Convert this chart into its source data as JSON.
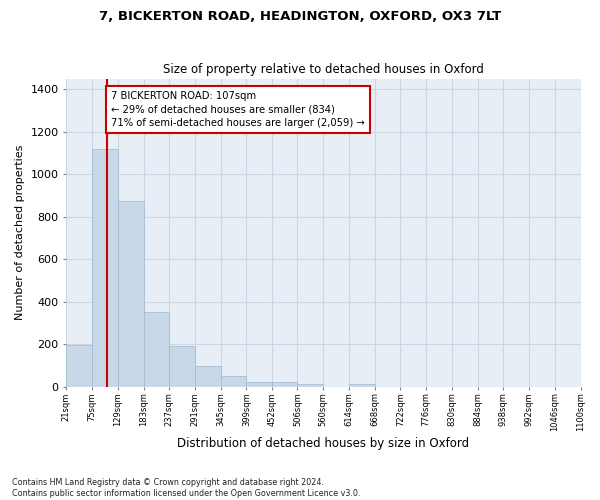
{
  "title_line1": "7, BICKERTON ROAD, HEADINGTON, OXFORD, OX3 7LT",
  "title_line2": "Size of property relative to detached houses in Oxford",
  "xlabel": "Distribution of detached houses by size in Oxford",
  "ylabel": "Number of detached properties",
  "footnote": "Contains HM Land Registry data © Crown copyright and database right 2024.\nContains public sector information licensed under the Open Government Licence v3.0.",
  "bin_edges": [
    21,
    75,
    129,
    183,
    237,
    291,
    345,
    399,
    452,
    506,
    560,
    614,
    668,
    722,
    776,
    830,
    884,
    938,
    992,
    1046,
    1100
  ],
  "bar_heights": [
    195,
    1120,
    875,
    350,
    190,
    100,
    50,
    22,
    22,
    15,
    0,
    15,
    0,
    0,
    0,
    0,
    0,
    0,
    0,
    0
  ],
  "bar_color": "#c8d8e8",
  "bar_edge_color": "#a0b8d0",
  "property_size": 107,
  "property_line_color": "#cc0000",
  "annotation_text": "7 BICKERTON ROAD: 107sqm\n← 29% of detached houses are smaller (834)\n71% of semi-detached houses are larger (2,059) →",
  "annotation_box_color": "#cc0000",
  "ylim": [
    0,
    1450
  ],
  "yticks": [
    0,
    200,
    400,
    600,
    800,
    1000,
    1200,
    1400
  ],
  "grid_color": "#cdd6e3",
  "background_color": "#e8eef5",
  "tick_labels": [
    "21sqm",
    "75sqm",
    "129sqm",
    "183sqm",
    "237sqm",
    "291sqm",
    "345sqm",
    "399sqm",
    "452sqm",
    "506sqm",
    "560sqm",
    "614sqm",
    "668sqm",
    "722sqm",
    "776sqm",
    "830sqm",
    "884sqm",
    "938sqm",
    "992sqm",
    "1046sqm",
    "1100sqm"
  ]
}
